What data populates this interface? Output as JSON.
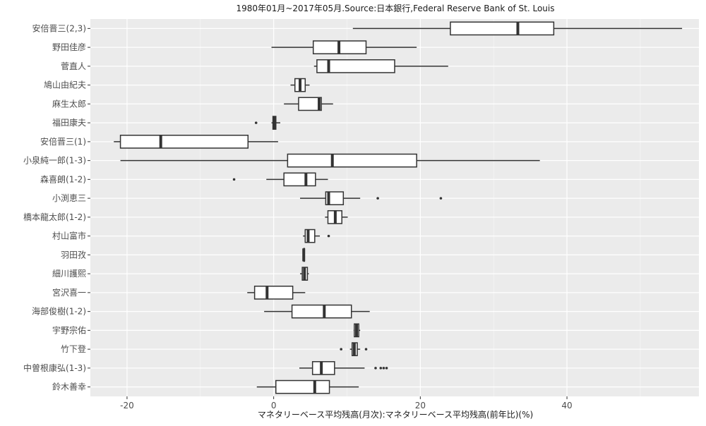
{
  "chart_data": {
    "type": "boxplot",
    "orientation": "horizontal",
    "title": "1980年01月~2017年05月.Source:日本銀行,Federal Reserve Bank of St. Louis",
    "xlabel": "マネタリーベース平均残高(月次):マネタリーベース平均残高(前年比)(%)",
    "ylabel": "",
    "xlim": [
      -25,
      58
    ],
    "xticks": [
      -20,
      0,
      20,
      40
    ],
    "grid": true,
    "legend": "none",
    "colors": {
      "panel": "#ebebeb",
      "grid_major": "#ffffff",
      "box_fill": "#ffffff",
      "box_stroke": "#333333"
    },
    "categories": [
      "安倍晋三(2,3)",
      "野田佳彦",
      "菅直人",
      "鳩山由紀夫",
      "麻生太郎",
      "福田康夫",
      "安倍晋三(1)",
      "小泉純一郎(1-3)",
      "森喜朗(1-2)",
      "小渕恵三",
      "橋本龍太郎(1-2)",
      "村山富市",
      "羽田孜",
      "細川護熙",
      "宮沢喜一",
      "海部俊樹(1-2)",
      "宇野宗佑",
      "竹下登",
      "中曽根康弘(1-3)",
      "鈴木善幸"
    ],
    "boxes": [
      {
        "name": "安倍晋三(2,3)",
        "min": 10.8,
        "q1": 24.1,
        "median": 33.3,
        "q3": 38.2,
        "max": 55.7,
        "outliers": []
      },
      {
        "name": "野田佳彦",
        "min": -0.3,
        "q1": 5.4,
        "median": 8.9,
        "q3": 12.6,
        "max": 19.5,
        "outliers": []
      },
      {
        "name": "菅直人",
        "min": 5.5,
        "q1": 5.9,
        "median": 7.5,
        "q3": 16.5,
        "max": 23.8,
        "outliers": []
      },
      {
        "name": "鳩山由紀夫",
        "min": 2.3,
        "q1": 2.9,
        "median": 3.6,
        "q3": 4.3,
        "max": 4.9,
        "outliers": []
      },
      {
        "name": "麻生太郎",
        "min": 1.4,
        "q1": 3.4,
        "median": 6.2,
        "q3": 6.5,
        "max": 8.1,
        "outliers": []
      },
      {
        "name": "福田康夫",
        "min": -0.3,
        "q1": -0.1,
        "median": 0.1,
        "q3": 0.3,
        "max": 0.9,
        "outliers": [
          -2.4
        ]
      },
      {
        "name": "安倍晋三(1)",
        "min": -21.8,
        "q1": -20.9,
        "median": -15.4,
        "q3": -3.5,
        "max": 0.6,
        "outliers": []
      },
      {
        "name": "小泉純一郎(1-3)",
        "min": -20.9,
        "q1": 1.9,
        "median": 8.0,
        "q3": 19.5,
        "max": 36.3,
        "outliers": []
      },
      {
        "name": "森喜朗(1-2)",
        "min": -1.0,
        "q1": 1.4,
        "median": 4.4,
        "q3": 5.7,
        "max": 7.4,
        "outliers": [
          -5.4
        ]
      },
      {
        "name": "小渕恵三",
        "min": 3.6,
        "q1": 7.1,
        "median": 7.5,
        "q3": 9.5,
        "max": 11.8,
        "outliers": [
          14.2,
          22.8
        ]
      },
      {
        "name": "橋本龍太郎(1-2)",
        "min": 7.0,
        "q1": 7.4,
        "median": 8.4,
        "q3": 9.3,
        "max": 10.1,
        "outliers": []
      },
      {
        "name": "村山富市",
        "min": 4.0,
        "q1": 4.3,
        "median": 4.7,
        "q3": 5.6,
        "max": 6.3,
        "outliers": [
          7.5
        ]
      },
      {
        "name": "羽田孜",
        "min": 4.1,
        "q1": 4.1,
        "median": 4.1,
        "q3": 4.2,
        "max": 4.2,
        "outliers": []
      },
      {
        "name": "細川護熙",
        "min": 3.6,
        "q1": 3.9,
        "median": 4.2,
        "q3": 4.6,
        "max": 4.8,
        "outliers": []
      },
      {
        "name": "宮沢喜一",
        "min": -3.6,
        "q1": -2.6,
        "median": -0.9,
        "q3": 2.6,
        "max": 4.3,
        "outliers": []
      },
      {
        "name": "海部俊樹(1-2)",
        "min": -1.3,
        "q1": 2.5,
        "median": 6.9,
        "q3": 10.6,
        "max": 13.1,
        "outliers": []
      },
      {
        "name": "宇野宗佑",
        "min": 10.9,
        "q1": 11.0,
        "median": 11.3,
        "q3": 11.6,
        "max": 11.8,
        "outliers": []
      },
      {
        "name": "竹下登",
        "min": 10.4,
        "q1": 10.7,
        "median": 11.0,
        "q3": 11.4,
        "max": 11.8,
        "outliers": [
          9.2,
          12.6
        ]
      },
      {
        "name": "中曽根康弘(1-3)",
        "min": 3.5,
        "q1": 5.3,
        "median": 6.5,
        "q3": 8.3,
        "max": 12.4,
        "outliers": [
          13.9,
          14.6,
          15.0,
          15.4
        ]
      },
      {
        "name": "鈴木善幸",
        "min": -2.3,
        "q1": 0.3,
        "median": 5.6,
        "q3": 7.6,
        "max": 11.6,
        "outliers": []
      }
    ]
  }
}
